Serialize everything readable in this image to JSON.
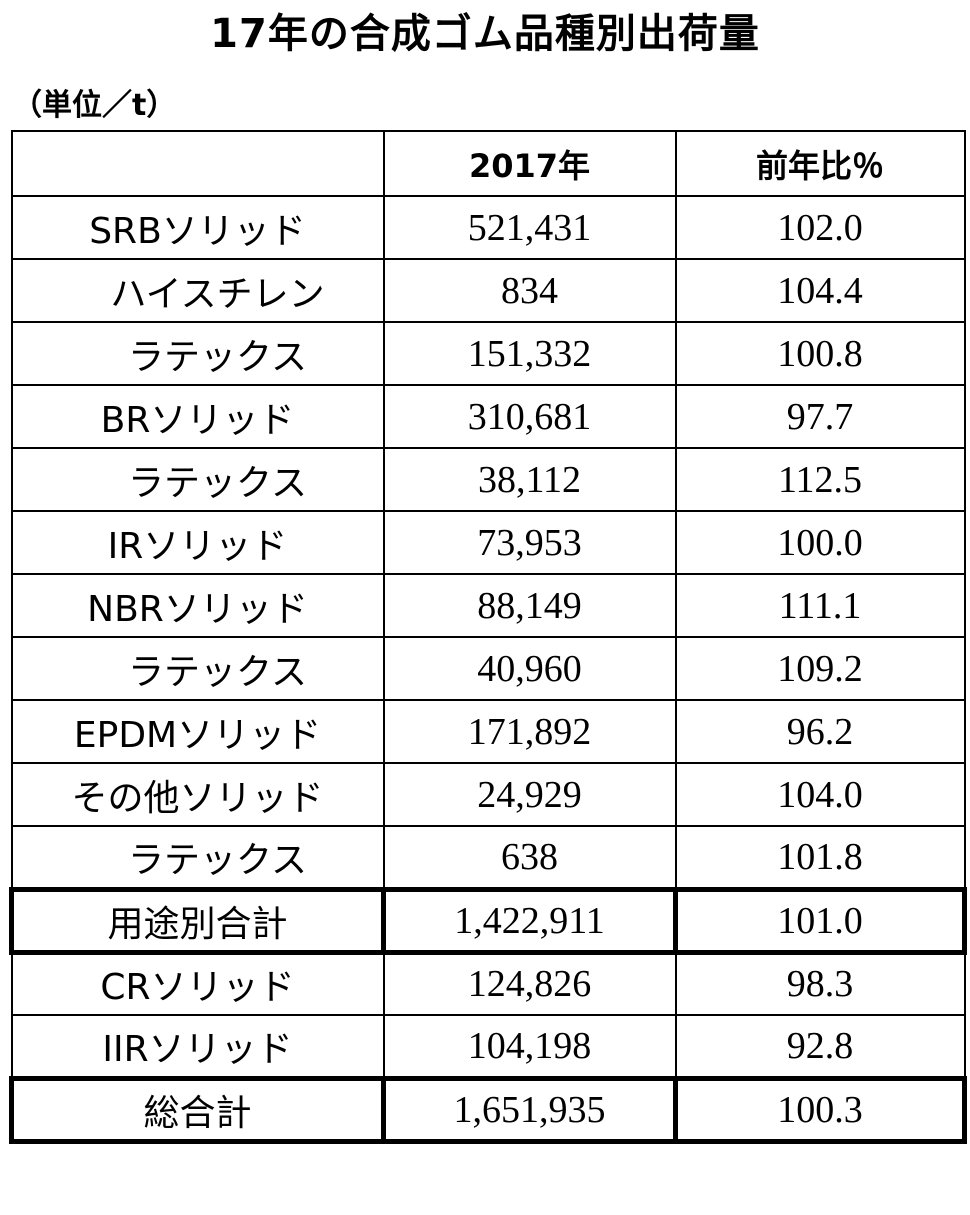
{
  "title": "17年の合成ゴム品種別出荷量",
  "unit": "（単位／t）",
  "header": {
    "col1": "",
    "col2": "2017年",
    "col3": "前年比％"
  },
  "rows": [
    {
      "label": "SRBソリッド",
      "value": "521,431",
      "ratio": "102.0"
    },
    {
      "label": "ハイスチレン",
      "value": "834",
      "ratio": "104.4"
    },
    {
      "label": "ラテックス",
      "value": "151,332",
      "ratio": "100.8"
    },
    {
      "label": "BRソリッド",
      "value": "310,681",
      "ratio": "97.7"
    },
    {
      "label": "ラテックス",
      "value": "38,112",
      "ratio": "112.5"
    },
    {
      "label": "IRソリッド",
      "value": "73,953",
      "ratio": "100.0"
    },
    {
      "label": "NBRソリッド",
      "value": "88,149",
      "ratio": "111.1"
    },
    {
      "label": "ラテックス",
      "value": "40,960",
      "ratio": "109.2"
    },
    {
      "label": "EPDMソリッド",
      "value": "171,892",
      "ratio": "96.2"
    },
    {
      "label": "その他ソリッド",
      "value": "24,929",
      "ratio": "104.0"
    },
    {
      "label": "ラテックス",
      "value": "638",
      "ratio": "101.8"
    },
    {
      "label": "用途別合計",
      "value": "1,422,911",
      "ratio": "101.0"
    },
    {
      "label": "CRソリッド",
      "value": "124,826",
      "ratio": "98.3"
    },
    {
      "label": "IIRソリッド",
      "value": "104,198",
      "ratio": "92.8"
    },
    {
      "label": "総合計",
      "value": "1,651,935",
      "ratio": "100.3"
    }
  ]
}
